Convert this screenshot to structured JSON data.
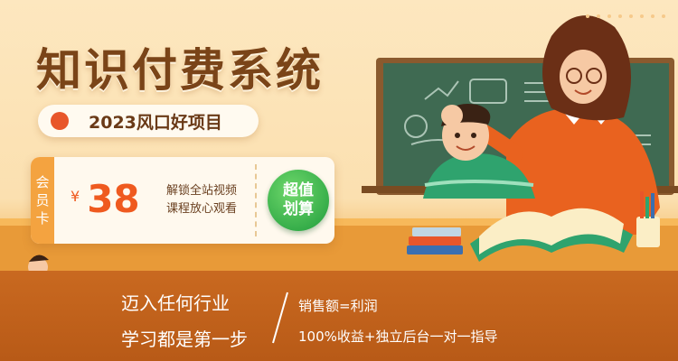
{
  "banner": {
    "title": "知识付费系统",
    "subtitle": "2023风口好项目",
    "card": {
      "tag_chars": [
        "会",
        "员",
        "卡"
      ],
      "currency": "¥",
      "price": "38",
      "desc_line1": "解锁全站视频",
      "desc_line2": "课程放心观看",
      "badge_line1": "超值",
      "badge_line2": "划算"
    },
    "bottom": {
      "left_line1": "迈入任何行业",
      "left_line2": "学习都是第一步",
      "right_line1": "销售额=利润",
      "right_line2": "100%收益+独立后台一对一指导"
    }
  },
  "colors": {
    "title": "#7a4418",
    "accent_orange": "#ef5a1f",
    "badge_green": "#2ea84a",
    "bottom_bar": "#c0621c"
  },
  "icons": [
    "teacher-illustration",
    "student-illustration",
    "guitar-kid-illustration",
    "chalkboard-illustration",
    "book-icon",
    "pencil-cup-icon"
  ]
}
